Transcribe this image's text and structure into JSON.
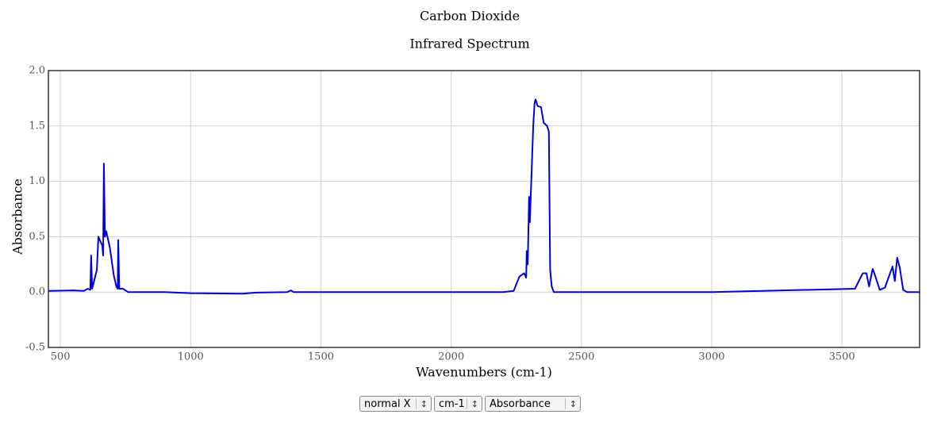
{
  "chart_data": {
    "type": "line",
    "title": "Carbon Dioxide",
    "subtitle": "Infrared Spectrum",
    "x_label": "Wavenumbers (cm-1)",
    "y_label": "Absorbance",
    "x": [
      455,
      550,
      590,
      605,
      615,
      618,
      622,
      640,
      646,
      655,
      661,
      664,
      667,
      671,
      676,
      690,
      705,
      715,
      720,
      722,
      726,
      740,
      760,
      900,
      1000,
      1200,
      1250,
      1370,
      1385,
      1395,
      2000,
      2200,
      2240,
      2250,
      2262,
      2280,
      2288,
      2290,
      2294,
      2299,
      2302,
      2306,
      2315,
      2320,
      2324,
      2332,
      2345,
      2355,
      2368,
      2375,
      2380,
      2386,
      2394,
      3000,
      3550,
      3580,
      3594,
      3604,
      3618,
      3630,
      3645,
      3665,
      3694,
      3703,
      3712,
      3722,
      3735,
      3750,
      3800
    ],
    "series": [
      {
        "name": "Absorbance",
        "color": "#0000dd",
        "values": [
          0.01,
          0.015,
          0.01,
          0.03,
          0.02,
          0.33,
          0.03,
          0.2,
          0.5,
          0.45,
          0.42,
          0.33,
          1.16,
          0.5,
          0.55,
          0.4,
          0.15,
          0.05,
          0.03,
          0.47,
          0.03,
          0.03,
          0.0,
          0.0,
          -0.01,
          -0.015,
          -0.005,
          0.0,
          0.015,
          0.0,
          0.0,
          0.0,
          0.01,
          0.07,
          0.14,
          0.17,
          0.13,
          0.37,
          0.25,
          0.86,
          0.63,
          0.9,
          1.5,
          1.7,
          1.74,
          1.68,
          1.67,
          1.53,
          1.5,
          1.45,
          0.2,
          0.05,
          0.0,
          0.0,
          0.03,
          0.17,
          0.17,
          0.05,
          0.21,
          0.13,
          0.02,
          0.04,
          0.23,
          0.1,
          0.31,
          0.22,
          0.02,
          0.0,
          0.0
        ]
      }
    ],
    "xlim": [
      454,
      3798
    ],
    "ylim": [
      -0.5,
      2.0
    ],
    "xticks": [
      500,
      1000,
      1500,
      2000,
      2500,
      3000,
      3500
    ],
    "yticks": [
      {
        "value": 2,
        "label": "2.0"
      },
      1.5,
      {
        "value": 1,
        "label": "1.0"
      },
      0.5,
      {
        "value": 0,
        "label": "0.0"
      },
      -0.5
    ],
    "grid": true
  },
  "controls": [
    "normal X",
    "cm-1",
    "Absorbance"
  ]
}
